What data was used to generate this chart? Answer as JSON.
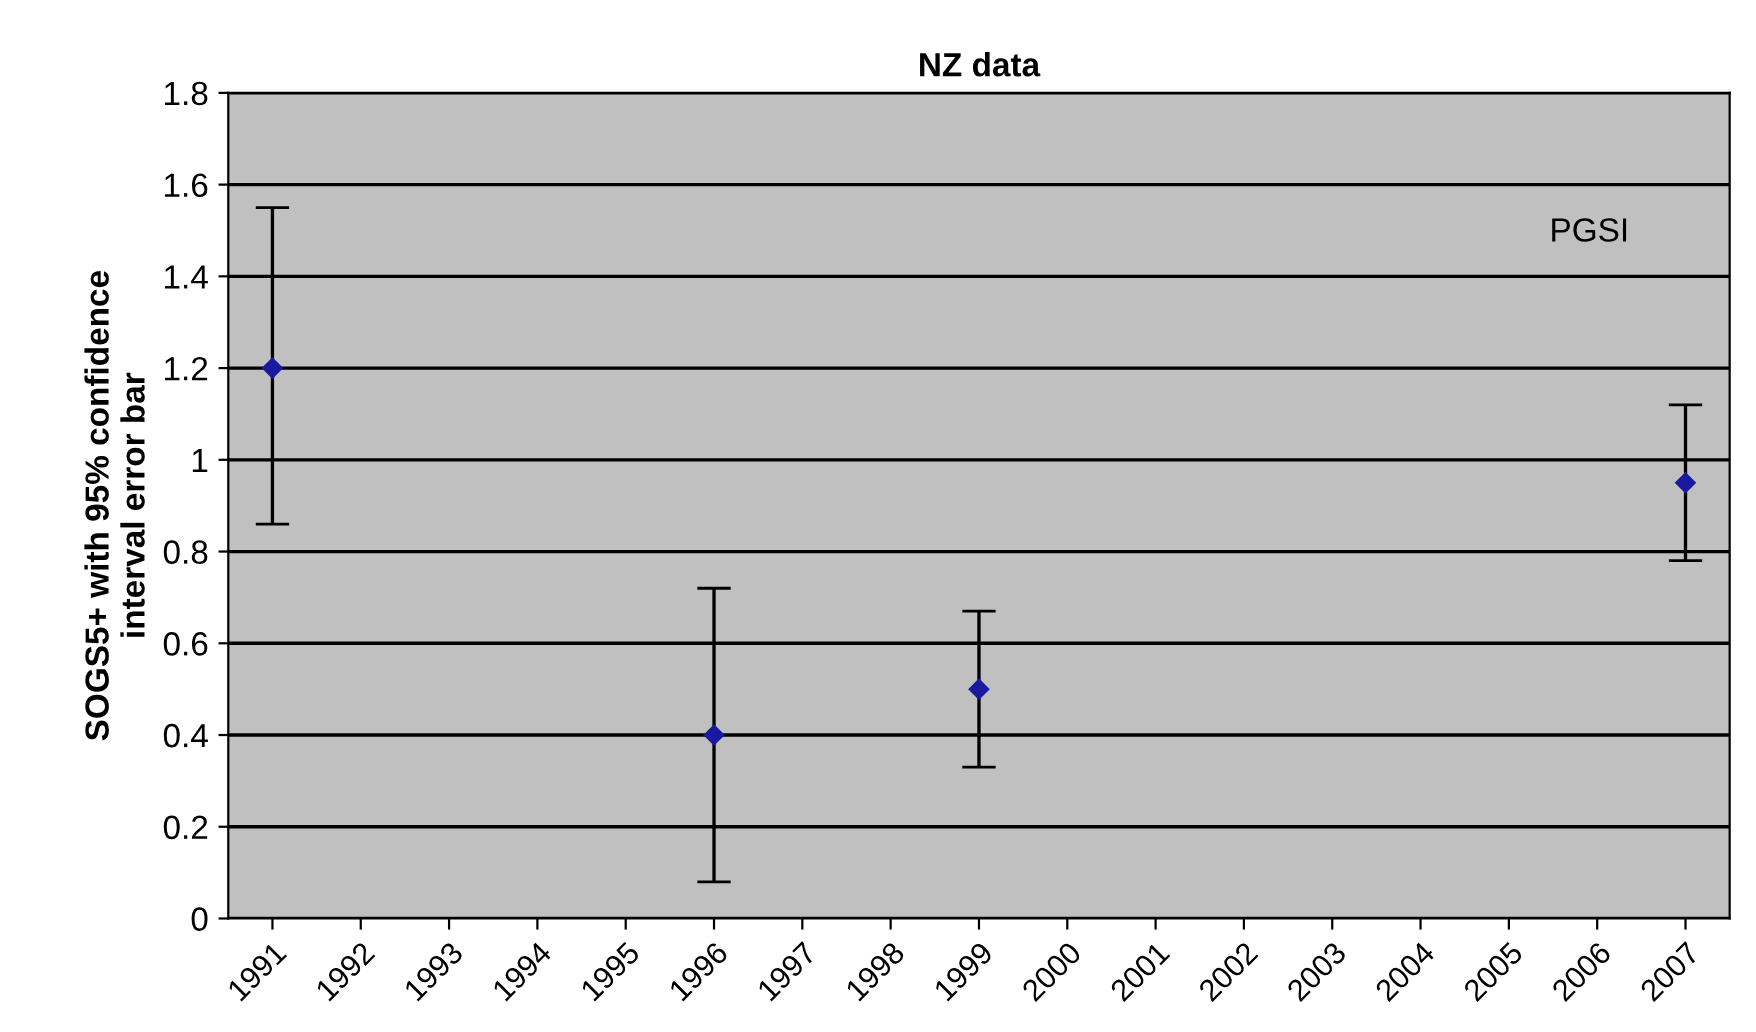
{
  "chart_data": {
    "type": "scatter",
    "title": "NZ data",
    "ylabel": "SOGS5+ with 95% confidence\ninterval error bar",
    "categories": [
      "1991",
      "1992",
      "1993",
      "1994",
      "1995",
      "1996",
      "1997",
      "1998",
      "1999",
      "2000",
      "2001",
      "2002",
      "2003",
      "2004",
      "2005",
      "2006",
      "2007"
    ],
    "series": [
      {
        "color": "#1a1aa0",
        "values": [
          1.2,
          null,
          null,
          null,
          null,
          0.4,
          null,
          null,
          0.5,
          null,
          null,
          null,
          null,
          null,
          null,
          null,
          0.95
        ],
        "errors": [
          [
            0.86,
            1.55
          ],
          null,
          null,
          null,
          null,
          [
            0.08,
            0.72
          ],
          null,
          null,
          [
            0.33,
            0.67
          ],
          null,
          null,
          null,
          null,
          null,
          null,
          null,
          [
            0.78,
            1.12
          ]
        ]
      }
    ],
    "ylim": [
      0,
      1.8
    ],
    "yticks": [
      0,
      0.2,
      0.4,
      0.6,
      0.8,
      1,
      1.2,
      1.4,
      1.6,
      1.8
    ],
    "grid": "y",
    "marker": "diamond",
    "annotations": [
      "PGSI"
    ]
  }
}
